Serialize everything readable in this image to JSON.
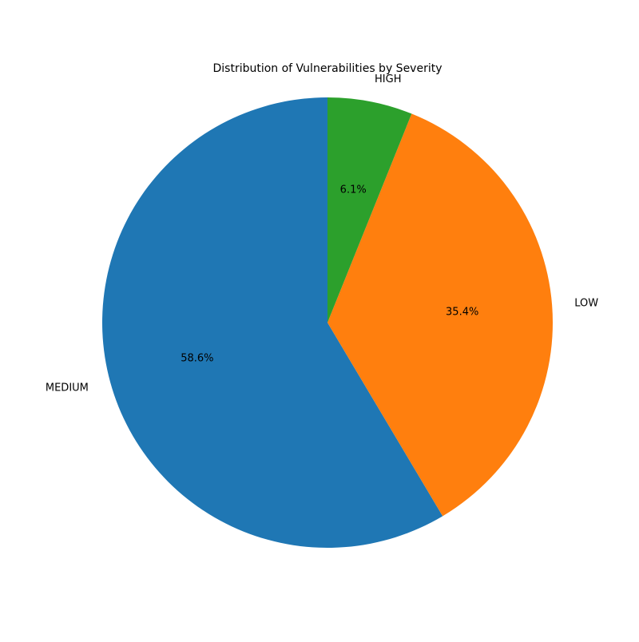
{
  "chart_data": {
    "type": "pie",
    "title": "Distribution of Vulnerabilities by Severity",
    "slices": [
      {
        "label": "MEDIUM",
        "value": 58.6,
        "pct_label": "58.6%",
        "color": "#1f77b4"
      },
      {
        "label": "LOW",
        "value": 35.4,
        "pct_label": "35.4%",
        "color": "#ff7f0e"
      },
      {
        "label": "HIGH",
        "value": 6.1,
        "pct_label": "6.1%",
        "color": "#2ca02c"
      }
    ],
    "start_angle_deg": 90,
    "direction": "counterclockwise",
    "legend": "none"
  }
}
